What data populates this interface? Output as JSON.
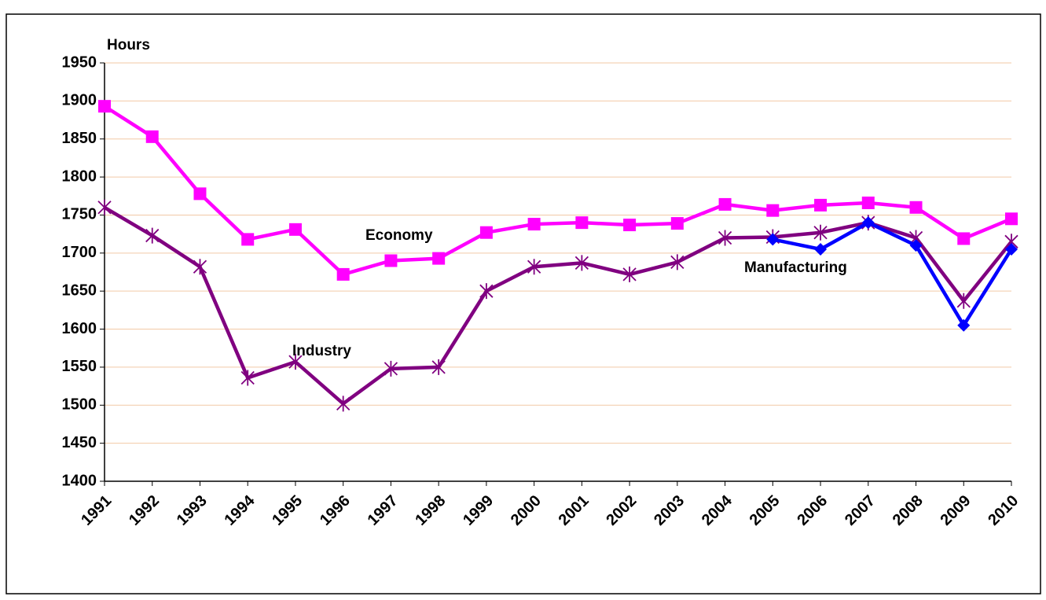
{
  "chart_data": {
    "type": "line",
    "y_label": "Hours",
    "categories": [
      "1991",
      "1992",
      "1993",
      "1994",
      "1995",
      "1996",
      "1997",
      "1998",
      "1999",
      "2000",
      "2001",
      "2002",
      "2003",
      "2004",
      "2005",
      "2006",
      "2007",
      "2008",
      "2009",
      "2010"
    ],
    "series": [
      {
        "name": "Economy",
        "color": "#ff00ff",
        "marker": "square",
        "values": [
          1893,
          1853,
          1778,
          1718,
          1731,
          1672,
          1690,
          1693,
          1727,
          1738,
          1740,
          1737,
          1739,
          1764,
          1756,
          1763,
          1766,
          1760,
          1719,
          1745
        ]
      },
      {
        "name": "Industry",
        "color": "#800080",
        "marker": "asterisk",
        "values": [
          1760,
          1723,
          1682,
          1536,
          1557,
          1502,
          1548,
          1550,
          1650,
          1682,
          1687,
          1672,
          1688,
          1720,
          1721,
          1727,
          1740,
          1720,
          1637,
          1715
        ]
      },
      {
        "name": "Manufacturing",
        "color": "#0000ff",
        "marker": "diamond",
        "values": [
          null,
          null,
          null,
          null,
          null,
          null,
          null,
          null,
          null,
          null,
          null,
          null,
          null,
          null,
          1718,
          1705,
          1740,
          1710,
          1605,
          1705
        ]
      }
    ],
    "ylim": [
      1400,
      1950
    ],
    "yticks": [
      1400,
      1450,
      1500,
      1550,
      1600,
      1650,
      1700,
      1750,
      1800,
      1850,
      1900,
      1950
    ],
    "grid": true
  }
}
